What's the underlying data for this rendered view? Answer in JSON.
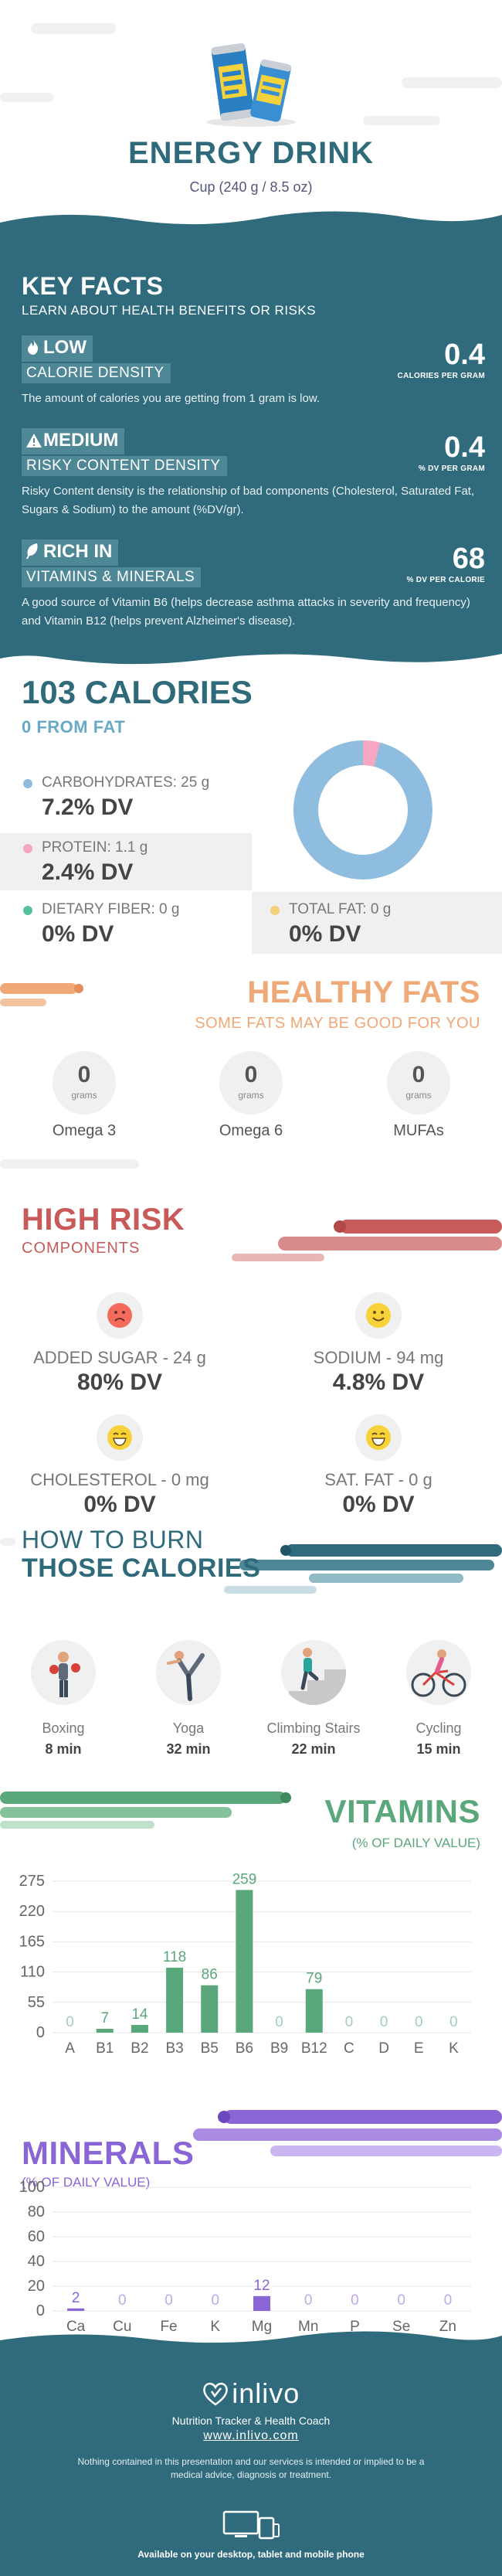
{
  "header": {
    "title": "ENERGY DRINK",
    "subtitle": "Cup (240 g / 8.5 oz)"
  },
  "key_facts": {
    "title": "KEY FACTS",
    "subtitle": "LEARN ABOUT HEALTH BENEFITS OR RISKS",
    "facts": [
      {
        "level": "LOW",
        "category": "CALORIE DENSITY",
        "description": "The amount of calories you are getting from 1 gram is low.",
        "value": "0.4",
        "unit": "CALORIES PER GRAM",
        "icon": "flame-icon"
      },
      {
        "level": "MEDIUM",
        "category": "RISKY CONTENT DENSITY",
        "description": "Risky Content density is the relationship of bad components (Cholesterol, Saturated Fat, Sugars & Sodium) to the amount (%DV/gr).",
        "value": "0.4",
        "unit": "% DV PER GRAM",
        "icon": "warning-icon"
      },
      {
        "level": "RICH  IN",
        "category": "VITAMINS & MINERALS",
        "description": "A good source of Vitamin B6 (helps decrease asthma attacks in severity and frequency) and Vitamin B12 (helps prevent Alzheimer's disease).",
        "value": "68",
        "unit": "% DV PER CALORIE",
        "icon": "leaf-icon"
      }
    ]
  },
  "calories": {
    "title": "103 CALORIES",
    "from_fat": "0 FROM FAT",
    "nutrients": [
      {
        "label": "CARBOHYDRATES: 25 g",
        "dv": "7.2% DV",
        "color": "#8fbde0"
      },
      {
        "label": "PROTEIN: 1.1 g",
        "dv": "2.4% DV",
        "color": "#f4a7c0"
      },
      {
        "label": "DIETARY FIBER: 0 g",
        "dv": "0% DV",
        "color": "#57c29a"
      },
      {
        "label": "TOTAL FAT: 0 g",
        "dv": "0% DV",
        "color": "#f5cf7a"
      }
    ],
    "donut": {
      "carb_share": 0.96,
      "protein_share": 0.04
    }
  },
  "healthy_fats": {
    "title": "HEALTHY FATS",
    "subtitle": "SOME FATS MAY BE GOOD FOR YOU",
    "items": [
      {
        "value": "0",
        "unit": "grams",
        "name": "Omega 3"
      },
      {
        "value": "0",
        "unit": "grams",
        "name": "Omega 6"
      },
      {
        "value": "0",
        "unit": "grams",
        "name": "MUFAs"
      }
    ]
  },
  "high_risk": {
    "title": "HIGH RISK",
    "subtitle": "COMPONENTS",
    "items": [
      {
        "label": "ADDED SUGAR - 24 g",
        "dv": "80% DV",
        "face": "sad"
      },
      {
        "label": "SODIUM - 94 mg",
        "dv": "4.8% DV",
        "face": "smile"
      },
      {
        "label": "CHOLESTEROL - 0 mg",
        "dv": "0% DV",
        "face": "grin"
      },
      {
        "label": "SAT. FAT - 0 g",
        "dv": "0% DV",
        "face": "grin"
      }
    ]
  },
  "burn": {
    "title_line1": "HOW TO BURN",
    "title_line2": "THOSE CALORIES",
    "activities": [
      {
        "name": "Boxing",
        "time": "8 min",
        "icon": "boxing-icon"
      },
      {
        "name": "Yoga",
        "time": "32 min",
        "icon": "yoga-icon"
      },
      {
        "name": "Climbing Stairs",
        "time": "22 min",
        "icon": "stairs-icon"
      },
      {
        "name": "Cycling",
        "time": "15 min",
        "icon": "cycling-icon"
      }
    ]
  },
  "vitamins": {
    "title": "VITAMINS",
    "subtitle": "(% OF DAILY VALUE)"
  },
  "minerals": {
    "title": "MINERALS",
    "subtitle": "(% OF DAILY VALUE)"
  },
  "chart_data": [
    {
      "type": "bar",
      "categories": [
        "A",
        "B1",
        "B2",
        "B3",
        "B5",
        "B6",
        "B9",
        "B12",
        "C",
        "D",
        "E",
        "K"
      ],
      "values": [
        0,
        7,
        14,
        118,
        86,
        259,
        0,
        79,
        0,
        0,
        0,
        0
      ],
      "yticks": [
        0,
        55,
        110,
        165,
        220,
        275
      ],
      "ylim": [
        0,
        275
      ],
      "color": "#5aa77b",
      "title": "VITAMINS",
      "subtitle": "(% OF DAILY VALUE)"
    },
    {
      "type": "bar",
      "categories": [
        "Ca",
        "Cu",
        "Fe",
        "K",
        "Mg",
        "Mn",
        "P",
        "Se",
        "Zn"
      ],
      "values": [
        2,
        0,
        0,
        0,
        12,
        0,
        0,
        0,
        0
      ],
      "yticks": [
        0,
        20,
        40,
        60,
        80,
        100
      ],
      "ylim": [
        0,
        100
      ],
      "color": "#8a65d6",
      "title": "MINERALS",
      "subtitle": "(% OF DAILY VALUE)"
    }
  ],
  "footer": {
    "logo": "inlivo",
    "tagline": "Nutrition Tracker & Health Coach",
    "url": "www.inlivo.com",
    "disclaimer": "Nothing contained in this presentation and our services is intended or implied to be a medical advice, diagnosis or treatment.",
    "availability": "Available on your desktop, tablet and mobile phone"
  }
}
